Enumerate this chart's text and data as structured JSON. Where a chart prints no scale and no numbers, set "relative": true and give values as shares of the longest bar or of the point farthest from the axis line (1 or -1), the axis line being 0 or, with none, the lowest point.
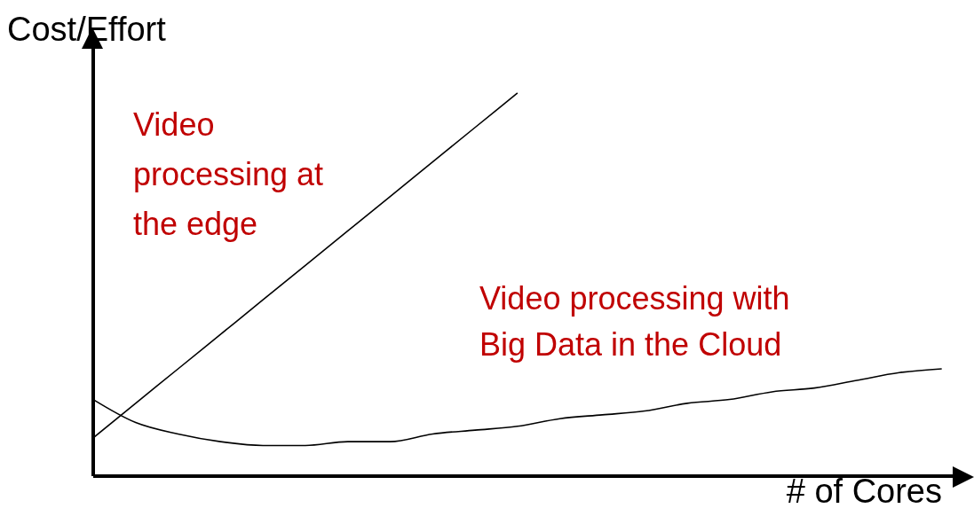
{
  "chart_data": {
    "type": "line",
    "relative": true,
    "xlabel": "# of Cores",
    "ylabel": "Cost/Effort",
    "categories": [
      null,
      null,
      null,
      null,
      null,
      null,
      null,
      null,
      null,
      null,
      null,
      null,
      null,
      null,
      null,
      null,
      null,
      null,
      null,
      null,
      null
    ],
    "series": [
      {
        "name": "Video processing at the edge",
        "color": "#000000",
        "values": [
          0.1,
          0.19,
          0.28,
          0.37,
          0.46,
          0.55,
          0.64,
          0.73,
          0.82,
          0.91,
          1.0,
          null,
          null,
          null,
          null,
          null,
          null,
          null,
          null,
          null,
          null
        ]
      },
      {
        "name": "Video processing with Big Data in the Cloud",
        "color": "#000000",
        "values": [
          0.2,
          0.14,
          0.11,
          0.09,
          0.08,
          0.08,
          0.09,
          0.09,
          0.11,
          0.12,
          0.13,
          0.15,
          0.16,
          0.17,
          0.19,
          0.2,
          0.22,
          0.23,
          0.25,
          0.27,
          0.28
        ]
      }
    ]
  }
}
